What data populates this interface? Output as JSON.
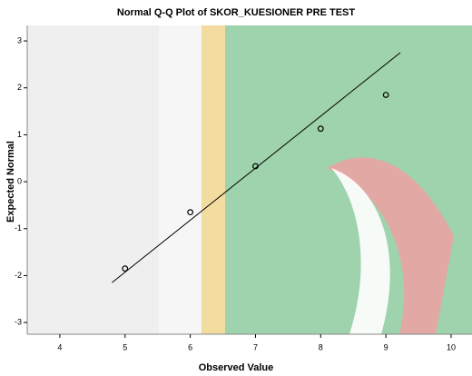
{
  "chart_data": {
    "type": "scatter",
    "title": "Normal Q-Q Plot of SKOR_KUESIONER PRE TEST",
    "x_label": "Observed Value",
    "y_label": "Expected Normal",
    "x": [
      5,
      6,
      7,
      8,
      9
    ],
    "values": [
      -1.85,
      -0.65,
      0.33,
      1.13,
      1.85
    ],
    "reference_line": {
      "x": [
        4.8,
        9.22
      ],
      "y": [
        -2.15,
        2.75
      ]
    },
    "color": "#000000",
    "xlim": [
      3.5,
      10.32
    ],
    "xticks": [
      4,
      5,
      6,
      7,
      8,
      9,
      10
    ],
    "ylim": [
      -3.25,
      3.33
    ],
    "yticks": [
      -3,
      -2,
      -1,
      0,
      1,
      2,
      3
    ]
  }
}
